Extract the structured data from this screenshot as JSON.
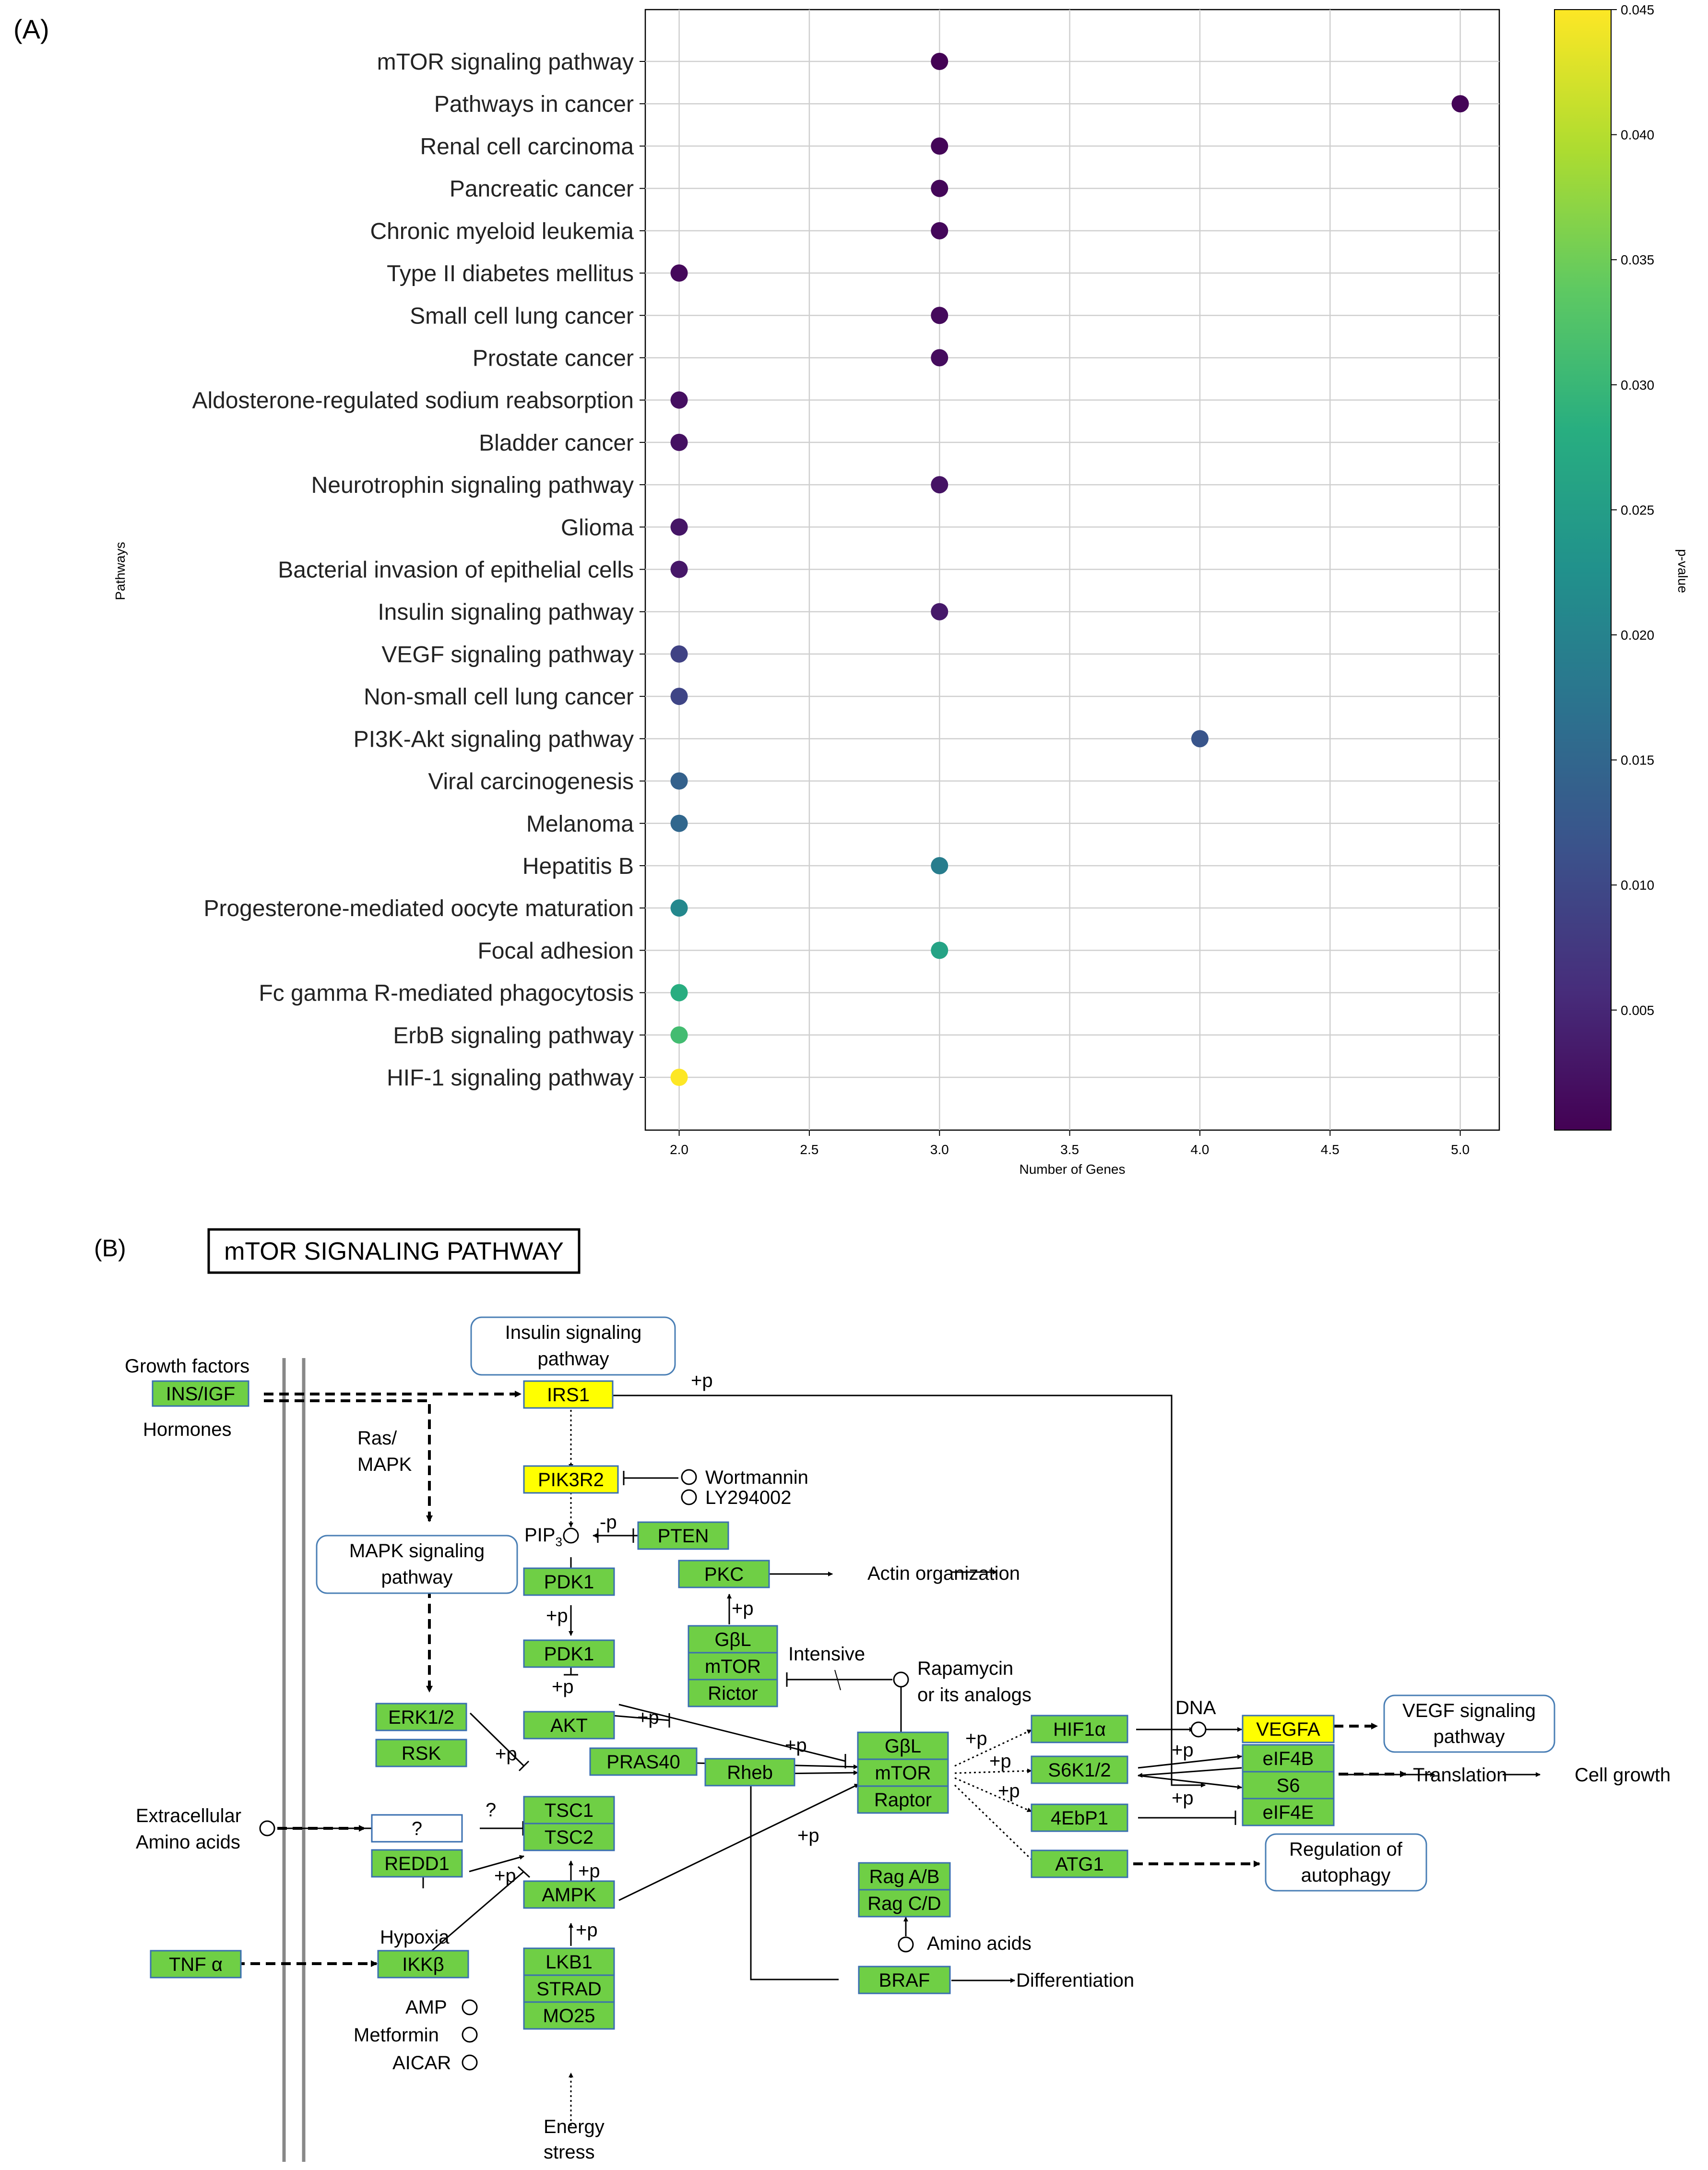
{
  "panel_a_label": "(A)",
  "panel_b_label": "(B)",
  "chart_data": {
    "type": "scatter",
    "title": "",
    "xlabel": "Number of Genes",
    "ylabel": "Pathways",
    "xlim": [
      1.87,
      5.15
    ],
    "xticks": [
      "2.0",
      "2.5",
      "3.0",
      "3.5",
      "4.0",
      "4.5",
      "5.0"
    ],
    "grid": true,
    "colorbar": {
      "label": "p-value",
      "range": [
        0.0002,
        0.045
      ],
      "ticks": [
        "0.005",
        "0.010",
        "0.015",
        "0.020",
        "0.025",
        "0.030",
        "0.035",
        "0.040",
        "0.045"
      ],
      "colormap": "viridis"
    },
    "points": [
      {
        "pathway": "mTOR signaling pathway",
        "genes": 3,
        "p": 0.0004
      },
      {
        "pathway": "Pathways in cancer",
        "genes": 5,
        "p": 0.0006
      },
      {
        "pathway": "Renal cell carcinoma",
        "genes": 3,
        "p": 0.0008
      },
      {
        "pathway": "Pancreatic cancer",
        "genes": 3,
        "p": 0.0009
      },
      {
        "pathway": "Chronic myeloid leukemia",
        "genes": 3,
        "p": 0.001
      },
      {
        "pathway": "Type II diabetes mellitus",
        "genes": 2,
        "p": 0.0012
      },
      {
        "pathway": "Small cell lung cancer",
        "genes": 3,
        "p": 0.0014
      },
      {
        "pathway": "Prostate cancer",
        "genes": 3,
        "p": 0.0016
      },
      {
        "pathway": "Aldosterone-regulated sodium reabsorption",
        "genes": 2,
        "p": 0.002
      },
      {
        "pathway": "Bladder cancer",
        "genes": 2,
        "p": 0.0022
      },
      {
        "pathway": "Neurotrophin signaling pathway",
        "genes": 3,
        "p": 0.0025
      },
      {
        "pathway": "Glioma",
        "genes": 2,
        "p": 0.0028
      },
      {
        "pathway": "Bacterial invasion of epithelial cells",
        "genes": 2,
        "p": 0.003
      },
      {
        "pathway": "Insulin signaling pathway",
        "genes": 3,
        "p": 0.0033
      },
      {
        "pathway": "VEGF signaling pathway",
        "genes": 2,
        "p": 0.009
      },
      {
        "pathway": "Non-small cell lung cancer",
        "genes": 2,
        "p": 0.0095
      },
      {
        "pathway": "PI3K-Akt signaling pathway",
        "genes": 4,
        "p": 0.012
      },
      {
        "pathway": "Viral carcinogenesis",
        "genes": 2,
        "p": 0.014
      },
      {
        "pathway": "Melanoma",
        "genes": 2,
        "p": 0.015
      },
      {
        "pathway": "Hepatitis B",
        "genes": 3,
        "p": 0.019
      },
      {
        "pathway": "Progesterone-mediated oocyte maturation",
        "genes": 2,
        "p": 0.021
      },
      {
        "pathway": "Focal adhesion",
        "genes": 3,
        "p": 0.026
      },
      {
        "pathway": "Fc gamma R-mediated phagocytosis",
        "genes": 2,
        "p": 0.028
      },
      {
        "pathway": "ErbB signaling pathway",
        "genes": 2,
        "p": 0.031
      },
      {
        "pathway": "HIF-1 signaling pathway",
        "genes": 2,
        "p": 0.045
      }
    ]
  },
  "diagram": {
    "title": "mTOR SIGNALING PATHWAY",
    "colors": {
      "green": "#6fcf45",
      "yellow": "#ffff00",
      "white": "#ffffff",
      "border": "#3a6fb0"
    },
    "text": {
      "growth_factors": "Growth factors",
      "hormones": "Hormones",
      "ras_mapk_1": "Ras/",
      "ras_mapk_2": "MAPK",
      "plus_p": "+p",
      "minus_p": "-p",
      "pip3": "PIP",
      "pip3_sub": "3",
      "wortmannin": "Wortmannin",
      "ly294002": "LY294002",
      "actin": "Actin organization",
      "intensive": "Intensive",
      "rapamycin_1": "Rapamycin",
      "rapamycin_2": "or its analogs",
      "dna": "DNA",
      "translation": "Translation",
      "cell_growth": "Cell growth",
      "extracellular_1": "Extracellular",
      "extracellular_2": "Amino acids",
      "question": "?",
      "hypoxia": "Hypoxia",
      "amino_acids": "Amino acids",
      "differentiation": "Differentiation",
      "amp": "AMP",
      "metformin": "Metformin",
      "aicar": "AICAR",
      "energy_1": "Energy",
      "energy_2": "stress"
    },
    "links": {
      "insulin": [
        "Insulin signaling",
        "pathway"
      ],
      "mapk": [
        "MAPK signaling",
        "pathway"
      ],
      "vegf": [
        "VEGF signaling",
        "pathway"
      ],
      "autophagy": [
        "Regulation of",
        "autophagy"
      ]
    },
    "nodes": {
      "ins_igf": "INS/IGF",
      "irs1": "IRS1",
      "pik3r2": "PIK3R2",
      "pten": "PTEN",
      "pdk1_a": "PDK1",
      "pdk1_b": "PDK1",
      "pkc": "PKC",
      "gbl_1": "GβL",
      "mtor_1": "mTOR",
      "rictor": "Rictor",
      "akt": "AKT",
      "pras40": "PRAS40",
      "rheb": "Rheb",
      "gbl_2": "GβL",
      "mtor_2": "mTOR",
      "raptor": "Raptor",
      "erk": "ERK1/2",
      "rsk": "RSK",
      "unknown": "?",
      "tsc1": "TSC1",
      "tsc2": "TSC2",
      "redd1": "REDD1",
      "ampk": "AMPK",
      "tnfa": "TNF α",
      "ikkb": "IKKβ",
      "lkb1": "LKB1",
      "strad": "STRAD",
      "mo25": "MO25",
      "hif1a": "HIF1α",
      "s6k": "S6K1/2",
      "ebp1": "4EbP1",
      "atg1": "ATG1",
      "vegfa": "VEGFA",
      "eif4b": "eIF4B",
      "s6": "S6",
      "eif4e": "eIF4E",
      "ragab": "Rag A/B",
      "ragcd": "Rag C/D",
      "braf": "BRAF"
    }
  }
}
